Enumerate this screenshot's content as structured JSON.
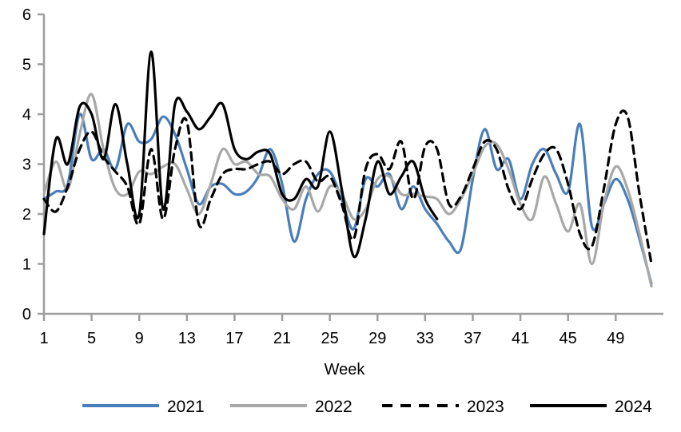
{
  "chart_data": {
    "type": "line",
    "title": "",
    "xlabel": "Week",
    "ylabel": "",
    "xlim": [
      1,
      52
    ],
    "ylim": [
      0,
      6
    ],
    "y_ticks": [
      0,
      1,
      2,
      3,
      4,
      5,
      6
    ],
    "x_ticks": [
      1,
      5,
      9,
      13,
      17,
      21,
      25,
      29,
      33,
      37,
      41,
      45,
      49
    ],
    "grid": false,
    "legend_position": "bottom",
    "smoothing": "spline",
    "weeks": [
      1,
      2,
      3,
      4,
      5,
      6,
      7,
      8,
      9,
      10,
      11,
      12,
      13,
      14,
      15,
      16,
      17,
      18,
      19,
      20,
      21,
      22,
      23,
      24,
      25,
      26,
      27,
      28,
      29,
      30,
      31,
      32,
      33,
      34,
      35,
      36,
      37,
      38,
      39,
      40,
      41,
      42,
      43,
      44,
      45,
      46,
      47,
      48,
      49,
      50,
      51,
      52
    ],
    "series": [
      {
        "name": "2021",
        "color": "#4a7ebb",
        "dash": "solid",
        "values": [
          2.3,
          2.45,
          2.6,
          4.0,
          3.1,
          3.3,
          2.9,
          3.8,
          3.45,
          3.5,
          3.95,
          3.6,
          2.9,
          2.2,
          2.55,
          2.6,
          2.4,
          2.45,
          2.75,
          3.3,
          2.6,
          1.45,
          2.3,
          2.8,
          2.85,
          2.3,
          1.7,
          2.7,
          2.55,
          2.8,
          2.1,
          2.55,
          2.1,
          1.8,
          1.45,
          1.3,
          2.7,
          3.7,
          2.9,
          3.1,
          2.3,
          3.0,
          3.3,
          2.8,
          2.45,
          3.8,
          1.75,
          2.2,
          2.7,
          2.3,
          1.5,
          0.6
        ]
      },
      {
        "name": "2022",
        "color": "#a8a8a8",
        "dash": "solid",
        "values": [
          2.4,
          3.05,
          2.5,
          3.6,
          4.4,
          3.3,
          2.5,
          2.4,
          2.85,
          2.8,
          2.95,
          3.0,
          2.5,
          2.0,
          2.6,
          3.3,
          3.0,
          3.05,
          2.8,
          2.75,
          2.3,
          2.1,
          2.55,
          2.05,
          2.55,
          2.4,
          1.9,
          2.1,
          2.7,
          2.75,
          2.4,
          2.4,
          2.35,
          2.3,
          2.0,
          2.3,
          2.8,
          3.35,
          3.4,
          2.9,
          2.2,
          1.9,
          2.75,
          2.2,
          1.65,
          2.2,
          1.0,
          2.2,
          2.95,
          2.5,
          1.6,
          0.55
        ]
      },
      {
        "name": "2023",
        "color": "#000000",
        "dash": "dashed",
        "values": [
          2.3,
          2.05,
          2.55,
          3.3,
          3.65,
          3.15,
          2.85,
          2.55,
          1.8,
          3.3,
          1.9,
          3.3,
          3.85,
          1.8,
          2.3,
          2.8,
          2.9,
          2.9,
          3.0,
          3.05,
          2.8,
          3.0,
          3.05,
          2.65,
          2.75,
          2.2,
          1.5,
          2.9,
          3.2,
          2.9,
          3.45,
          2.3,
          3.35,
          3.3,
          2.2,
          2.35,
          2.9,
          3.45,
          3.3,
          2.5,
          2.1,
          2.7,
          3.2,
          3.3,
          2.6,
          1.6,
          1.35,
          2.5,
          3.8,
          3.95,
          2.4,
          1.0
        ]
      },
      {
        "name": "2024",
        "color": "#000000",
        "dash": "solid",
        "values": [
          1.6,
          3.5,
          3.0,
          4.15,
          4.0,
          3.1,
          4.2,
          3.0,
          2.0,
          5.25,
          2.1,
          4.2,
          4.05,
          3.7,
          3.95,
          4.2,
          3.3,
          3.1,
          3.25,
          3.2,
          2.4,
          2.3,
          2.7,
          2.55,
          3.65,
          2.5,
          1.15,
          1.9,
          3.05,
          2.4,
          2.75,
          3.05,
          2.3,
          1.9
        ]
      }
    ]
  },
  "legend": {
    "items": [
      {
        "label": "2021"
      },
      {
        "label": "2022"
      },
      {
        "label": "2023"
      },
      {
        "label": "2024"
      }
    ]
  },
  "axis": {
    "x_label": "Week",
    "axis_color": "#9e9e9e"
  }
}
